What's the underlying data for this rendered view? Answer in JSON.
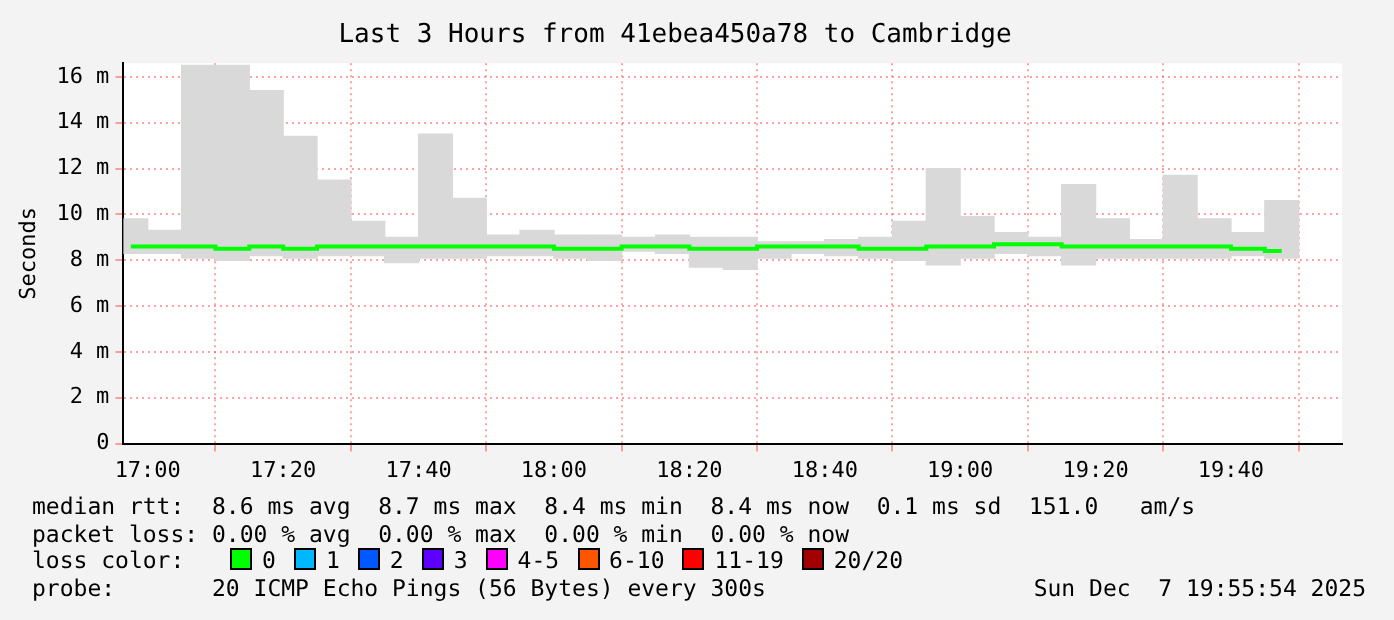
{
  "chart_data": {
    "type": "bar",
    "title": "Last 3 Hours from 41ebea450a78 to Cambridge",
    "ylabel": "Seconds",
    "x": [
      16.9583,
      17.0417,
      17.125,
      17.2083,
      17.2917,
      17.375,
      17.4583,
      17.5417,
      17.625,
      17.7083,
      17.7917,
      17.875,
      17.9583,
      18.0417,
      18.125,
      18.2083,
      18.2917,
      18.375,
      18.4583,
      18.5417,
      18.625,
      18.7083,
      18.7917,
      18.875,
      18.9583,
      19.0417,
      19.125,
      19.2083,
      19.2917,
      19.375,
      19.4583,
      19.5417,
      19.625,
      19.7083,
      19.7917
    ],
    "series": [
      {
        "color": "#d9d9d9",
        "base": [
          8.3,
          8.3,
          8.1,
          8.0,
          8.2,
          8.1,
          8.2,
          8.2,
          7.9,
          8.1,
          8.1,
          8.2,
          8.2,
          8.1,
          8.0,
          8.4,
          8.3,
          7.7,
          7.6,
          8.1,
          8.3,
          8.2,
          8.1,
          8.0,
          7.8,
          8.1,
          8.3,
          8.2,
          7.8,
          8.1,
          8.1,
          8.1,
          8.1,
          8.2,
          8.1
        ],
        "values": [
          1.5,
          1.0,
          8.4,
          8.5,
          7.2,
          5.3,
          3.3,
          1.5,
          1.1,
          5.4,
          2.6,
          0.9,
          1.1,
          1.0,
          1.1,
          0.6,
          0.8,
          1.3,
          1.4,
          0.7,
          0.5,
          0.7,
          0.9,
          1.7,
          4.2,
          1.8,
          0.9,
          0.8,
          3.5,
          1.7,
          0.8,
          3.6,
          1.7,
          1.0,
          2.5
        ]
      },
      {
        "type": "step",
        "name": "0",
        "color": "#00ff00",
        "values": [
          8.6,
          8.6,
          8.6,
          8.5,
          8.6,
          8.5,
          8.6,
          8.6,
          8.6,
          8.6,
          8.6,
          8.6,
          8.6,
          8.5,
          8.5,
          8.6,
          8.6,
          8.5,
          8.5,
          8.6,
          8.6,
          8.6,
          8.5,
          8.5,
          8.6,
          8.6,
          8.7,
          8.7,
          8.6,
          8.6,
          8.6,
          8.6,
          8.6,
          8.5,
          8.4
        ]
      },
      {
        "type": "step",
        "name": "1",
        "color": "#00b8ff",
        "values": [
          null,
          null,
          null,
          null,
          null,
          null,
          null,
          null,
          null,
          null,
          null,
          null,
          null,
          null,
          null,
          null,
          null,
          null,
          null,
          null,
          null,
          null,
          null,
          null,
          null,
          null,
          null,
          null,
          null,
          null,
          null,
          null,
          null,
          null,
          null
        ]
      },
      {
        "type": "step",
        "name": "2",
        "color": "#0059ff",
        "values": [
          null,
          null,
          null,
          null,
          null,
          null,
          null,
          null,
          null,
          null,
          null,
          null,
          null,
          null,
          null,
          null,
          null,
          null,
          null,
          null,
          null,
          null,
          null,
          null,
          null,
          null,
          null,
          null,
          null,
          null,
          null,
          null,
          null,
          null,
          null
        ]
      },
      {
        "type": "step",
        "name": "3",
        "color": "#5e00ff",
        "values": [
          null,
          null,
          null,
          null,
          null,
          null,
          null,
          null,
          null,
          null,
          null,
          null,
          null,
          null,
          null,
          null,
          null,
          null,
          null,
          null,
          null,
          null,
          null,
          null,
          null,
          null,
          null,
          null,
          null,
          null,
          null,
          null,
          null,
          null,
          null
        ]
      },
      {
        "type": "step",
        "name": "4-5",
        "color": "#ff00ff",
        "values": [
          null,
          null,
          null,
          null,
          null,
          null,
          null,
          null,
          null,
          null,
          null,
          null,
          null,
          null,
          null,
          null,
          null,
          null,
          null,
          null,
          null,
          null,
          null,
          null,
          null,
          null,
          null,
          null,
          null,
          null,
          null,
          null,
          null,
          null,
          null
        ]
      },
      {
        "type": "step",
        "name": "6-10",
        "color": "#ff5500",
        "values": [
          null,
          null,
          null,
          null,
          null,
          null,
          null,
          null,
          null,
          null,
          null,
          null,
          null,
          null,
          null,
          null,
          null,
          null,
          null,
          null,
          null,
          null,
          null,
          null,
          null,
          null,
          null,
          null,
          null,
          null,
          null,
          null,
          null,
          null,
          null
        ]
      },
      {
        "type": "step",
        "name": "11-19",
        "color": "#ff0000",
        "values": [
          null,
          null,
          null,
          null,
          null,
          null,
          null,
          null,
          null,
          null,
          null,
          null,
          null,
          null,
          null,
          null,
          null,
          null,
          null,
          null,
          null,
          null,
          null,
          null,
          null,
          null,
          null,
          null,
          null,
          null,
          null,
          null,
          null,
          null,
          null
        ]
      },
      {
        "type": "step",
        "name": "20/20",
        "color": "#a10000",
        "values": [
          null,
          null,
          null,
          null,
          null,
          null,
          null,
          null,
          null,
          null,
          null,
          null,
          null,
          null,
          null,
          null,
          null,
          null,
          null,
          null,
          null,
          null,
          null,
          null,
          null,
          null,
          null,
          null,
          null,
          null,
          null,
          null,
          null,
          null,
          null
        ]
      }
    ],
    "legend_title": "loss color:",
    "legend": "bottom",
    "xlim": [
      16.94,
      19.94
    ],
    "xticks": [
      {
        "value": 17,
        "label": "17:00"
      },
      {
        "value": 17.3333,
        "label": "17:20"
      },
      {
        "value": 17.6667,
        "label": "17:40"
      },
      {
        "value": 18,
        "label": "18:00"
      },
      {
        "value": 18.3333,
        "label": "18:20"
      },
      {
        "value": 18.6667,
        "label": "18:40"
      },
      {
        "value": 19,
        "label": "19:00"
      },
      {
        "value": 19.3333,
        "label": "19:20"
      },
      {
        "value": 19.6667,
        "label": "19:40"
      }
    ],
    "ylim": [
      0,
      16.6
    ],
    "yticks": [
      0,
      {
        "value": 2,
        "label": "2 m"
      },
      {
        "value": 4,
        "label": "4 m"
      },
      {
        "value": 6,
        "label": "6 m"
      },
      {
        "value": 8,
        "label": "8 m"
      },
      {
        "value": 10,
        "label": "10 m"
      },
      {
        "value": 12,
        "label": "12 m"
      },
      {
        "value": 14,
        "label": "14 m"
      },
      {
        "value": 16,
        "label": "16 m"
      }
    ],
    "grid": true,
    "annotations": [
      "median rtt:  8.6 ms avg  8.7 ms max  8.4 ms min  8.4 ms now  0.1 ms sd  151.0   am/s",
      "packet loss: 0.00 % avg  0.00 % max  0.00 % min  0.00 % now",
      "probe:       20 ICMP Echo Pings (56 Bytes) every 300s",
      "Sun Dec  7 19:55:54 2025"
    ]
  }
}
